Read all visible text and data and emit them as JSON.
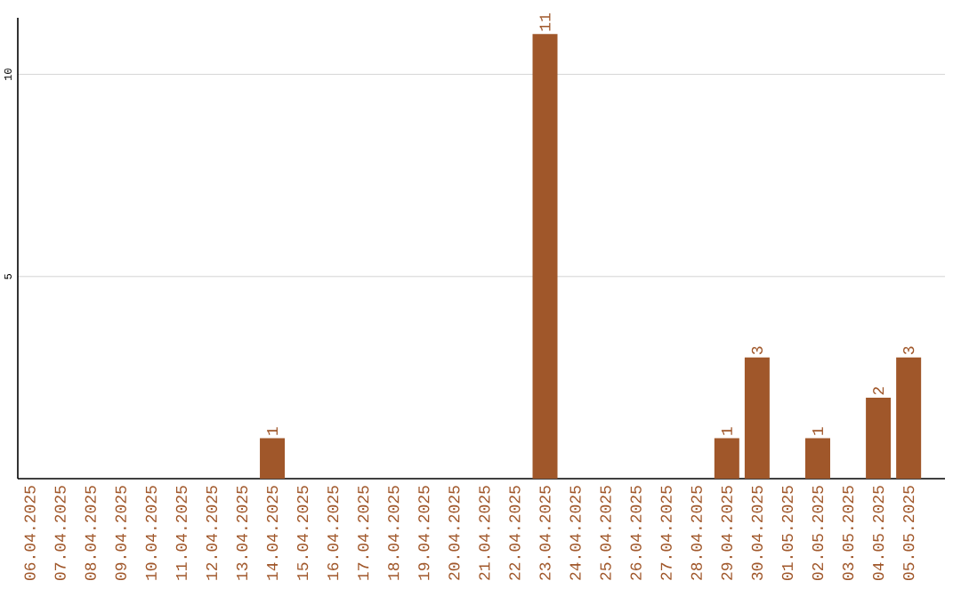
{
  "chart_data": {
    "type": "bar",
    "categories": [
      "06.04.2025",
      "07.04.2025",
      "08.04.2025",
      "09.04.2025",
      "10.04.2025",
      "11.04.2025",
      "12.04.2025",
      "13.04.2025",
      "14.04.2025",
      "15.04.2025",
      "16.04.2025",
      "17.04.2025",
      "18.04.2025",
      "19.04.2025",
      "20.04.2025",
      "21.04.2025",
      "22.04.2025",
      "23.04.2025",
      "24.04.2025",
      "25.04.2025",
      "26.04.2025",
      "27.04.2025",
      "28.04.2025",
      "29.04.2025",
      "30.04.2025",
      "01.05.2025",
      "02.05.2025",
      "03.05.2025",
      "04.05.2025",
      "05.05.2025"
    ],
    "values": [
      0,
      0,
      0,
      0,
      0,
      0,
      0,
      0,
      1,
      0,
      0,
      0,
      0,
      0,
      0,
      0,
      0,
      11,
      0,
      0,
      0,
      0,
      0,
      1,
      3,
      0,
      1,
      0,
      2,
      3
    ],
    "value_labels": [
      null,
      null,
      null,
      null,
      null,
      null,
      null,
      null,
      "1",
      null,
      null,
      null,
      null,
      null,
      null,
      null,
      null,
      "11",
      null,
      null,
      null,
      null,
      null,
      "1",
      "3",
      null,
      "1",
      null,
      "2",
      "3"
    ],
    "color": "#a0572a",
    "ylim": [
      0,
      11.4
    ],
    "yticks": [
      5,
      10
    ],
    "grid": "y"
  }
}
